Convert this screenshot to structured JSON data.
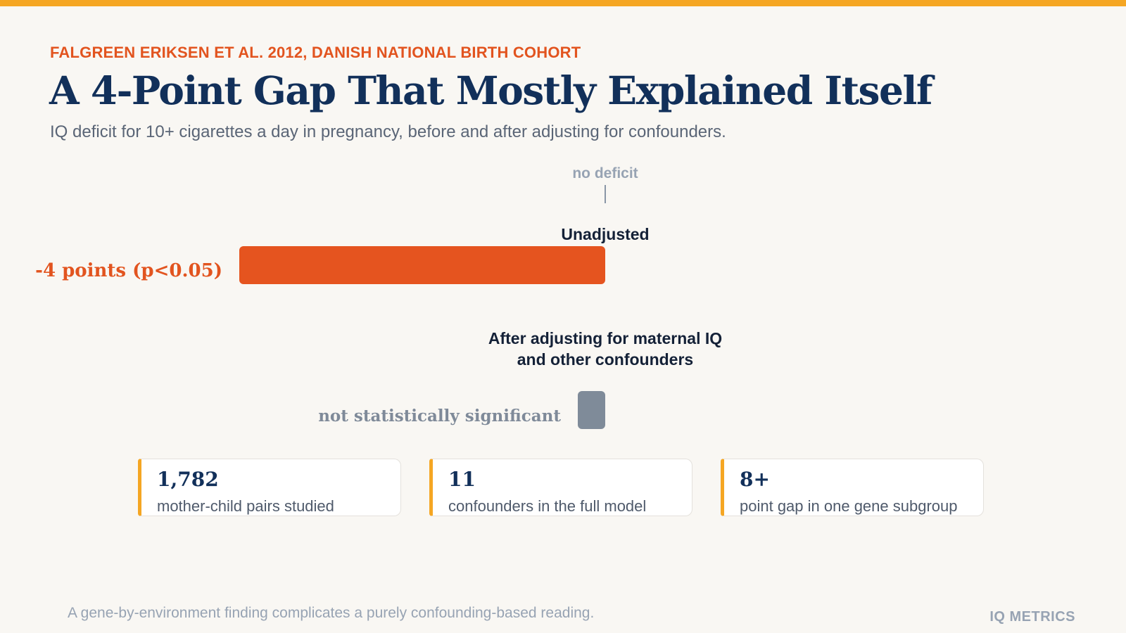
{
  "header": {
    "eyebrow": "FALGREEN ERIKSEN ET AL. 2012, DANISH NATIONAL BIRTH COHORT",
    "title": "A 4-Point Gap That Mostly Explained Itself",
    "subtitle": "IQ deficit for 10+ cigarettes a day in pregnancy, before and after adjusting for confounders."
  },
  "chart_data": {
    "type": "bar",
    "orientation": "horizontal",
    "zero_label": "no deficit",
    "categories": [
      "Unadjusted",
      "After adjusting for maternal IQ and other confounders"
    ],
    "category_lines": [
      [
        "Unadjusted"
      ],
      [
        "After adjusting for maternal IQ",
        "and other confounders"
      ]
    ],
    "values": [
      -4,
      -0.3
    ],
    "value_labels": [
      "-4 points (p<0.05)",
      "not statistically significant"
    ],
    "colors": [
      "#e5541f",
      "#7f8b99"
    ],
    "label_colors": [
      "#e2541f",
      "#7f8a99"
    ]
  },
  "stats": [
    {
      "value": "1,782",
      "label": "mother-child pairs studied"
    },
    {
      "value": "11",
      "label": "confounders in the full model"
    },
    {
      "value": "8+",
      "label": "point gap in one gene subgroup"
    }
  ],
  "footer": {
    "note": "A gene-by-environment finding complicates a purely confounding-based reading.",
    "brand": "IQ METRICS"
  },
  "colors": {
    "accent": "#f5a623",
    "headline": "#12305a",
    "eyebrow": "#e2541f"
  }
}
